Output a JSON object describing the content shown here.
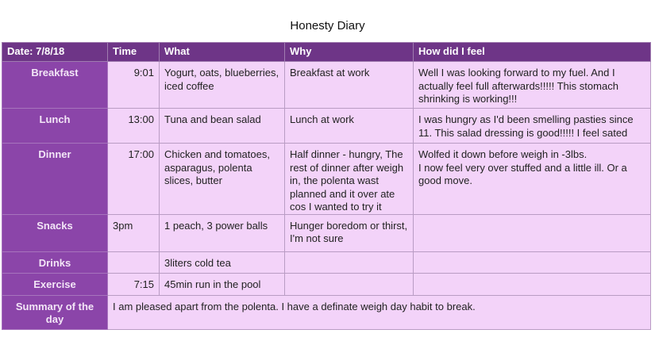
{
  "title": "Honesty Diary",
  "headers": [
    "Date: 7/8/18",
    "Time",
    "What",
    "Why",
    "How did I feel"
  ],
  "rows": [
    {
      "label": "Breakfast",
      "time": "9:01",
      "what": "Yogurt, oats, blueberries, iced coffee",
      "why": "Breakfast at work",
      "feel": "Well I was looking forward to my fuel. And I actually feel full afterwards!!!!! This stomach shrinking is working!!!"
    },
    {
      "label": "Lunch",
      "time": "13:00",
      "what": "Tuna and bean salad",
      "why": "Lunch at work",
      "feel": "I was hungry as I'd been smelling pasties since 11. This salad dressing is good!!!!! I feel sated"
    },
    {
      "label": "Dinner",
      "time": "17:00",
      "what": "Chicken and tomatoes, asparagus, polenta slices, butter",
      "why": "Half dinner - hungry, The rest of dinner after weigh in, the polenta wast planned and it over ate cos I wanted to try it",
      "feel": "Wolfed it down before weigh in -3lbs.\nI now feel very over stuffed and a little ill.  Or a good move."
    },
    {
      "label": "Snacks",
      "time": "3pm",
      "what": "1 peach, 3 power balls",
      "why": "Hunger boredom or thirst, I'm not sure",
      "feel": ""
    },
    {
      "label": "Drinks",
      "time": "",
      "what": "3liters cold tea",
      "why": "",
      "feel": ""
    },
    {
      "label": "Exercise",
      "time": "7:15",
      "what": "45min run in the pool",
      "why": "",
      "feel": ""
    }
  ],
  "summary": {
    "label": "Summary of the day",
    "text": "I am pleased apart from the polenta. I have a definate weigh day habit to break."
  },
  "colors": {
    "header": "#6e3587",
    "label_column": "#8b45a9",
    "cell": "#f3d3f9"
  }
}
